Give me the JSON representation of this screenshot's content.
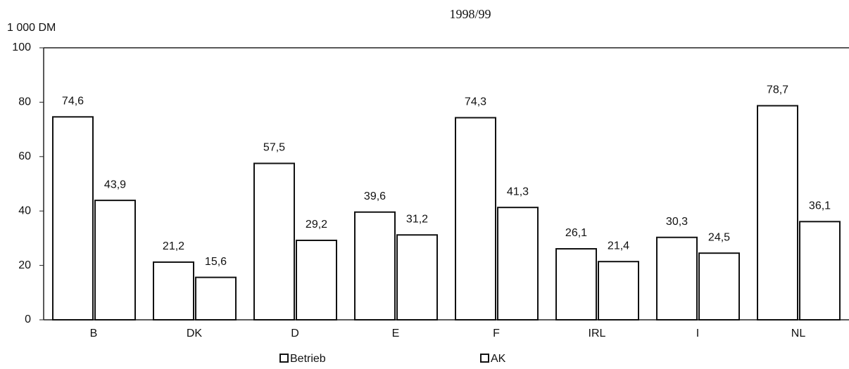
{
  "chart_data": {
    "type": "bar",
    "title": "1998/99",
    "y_label": "1 000 DM",
    "categories": [
      "B",
      "DK",
      "D",
      "E",
      "F",
      "IRL",
      "I",
      "NL"
    ],
    "series": [
      {
        "name": "Betrieb",
        "color": "#ffffff",
        "values": [
          74.6,
          21.2,
          57.5,
          39.6,
          74.3,
          26.1,
          30.3,
          78.7
        ],
        "value_labels": [
          "74,6",
          "21,2",
          "57,5",
          "39,6",
          "74,3",
          "26,1",
          "30,3",
          "78,7"
        ]
      },
      {
        "name": "AK",
        "color": "#ffffff",
        "values": [
          43.9,
          15.6,
          29.2,
          31.2,
          41.3,
          21.4,
          24.5,
          36.1
        ],
        "value_labels": [
          "43,9",
          "15,6",
          "29,2",
          "31,2",
          "41,3",
          "21,4",
          "24,5",
          "36,1"
        ]
      }
    ],
    "ylim": [
      0,
      100
    ],
    "yticks": [
      0,
      20,
      40,
      60,
      80,
      100
    ],
    "grid": false,
    "legend": "bottom"
  }
}
